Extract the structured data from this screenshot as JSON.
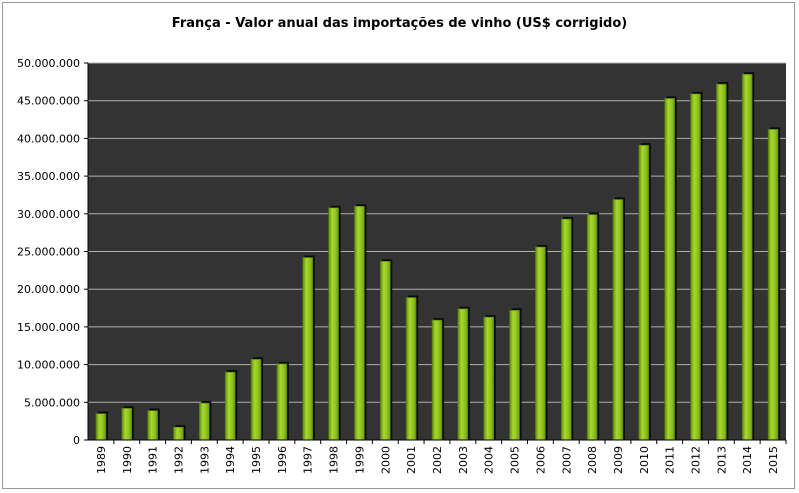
{
  "chart_data": {
    "type": "bar",
    "title": "França - Valor anual das importações de vinho (US$ corrigido)",
    "xlabel": "",
    "ylabel": "",
    "ylim": [
      0,
      50000000
    ],
    "yticks": [
      0,
      5000000,
      10000000,
      15000000,
      20000000,
      25000000,
      30000000,
      35000000,
      40000000,
      45000000,
      50000000
    ],
    "ytick_labels": [
      "0",
      "5.000.000",
      "10.000.000",
      "15.000.000",
      "20.000.000",
      "25.000.000",
      "30.000.000",
      "35.000.000",
      "40.000.000",
      "45.000.000",
      "50.000.000"
    ],
    "categories": [
      "1989",
      "1990",
      "1991",
      "1992",
      "1993",
      "1994",
      "1995",
      "1996",
      "1997",
      "1998",
      "1999",
      "2000",
      "2001",
      "2002",
      "2003",
      "2004",
      "2005",
      "2006",
      "2007",
      "2008",
      "2009",
      "2010",
      "2011",
      "2012",
      "2013",
      "2014",
      "2015"
    ],
    "values": [
      3500000,
      4200000,
      3900000,
      1700000,
      4900000,
      9000000,
      10700000,
      10100000,
      24200000,
      30800000,
      31000000,
      23700000,
      18900000,
      15900000,
      17400000,
      16300000,
      17200000,
      25600000,
      29300000,
      29900000,
      31900000,
      39100000,
      45300000,
      45900000,
      47200000,
      48500000,
      41200000
    ],
    "grid": true,
    "legend": "none",
    "colors": {
      "plot_background": "#333333",
      "gridline": "#b0b0b0",
      "bar_fill": "#8fc31f",
      "bar_highlight": "#c9ee6a",
      "bar_shadow": "#0a0a0a"
    }
  }
}
